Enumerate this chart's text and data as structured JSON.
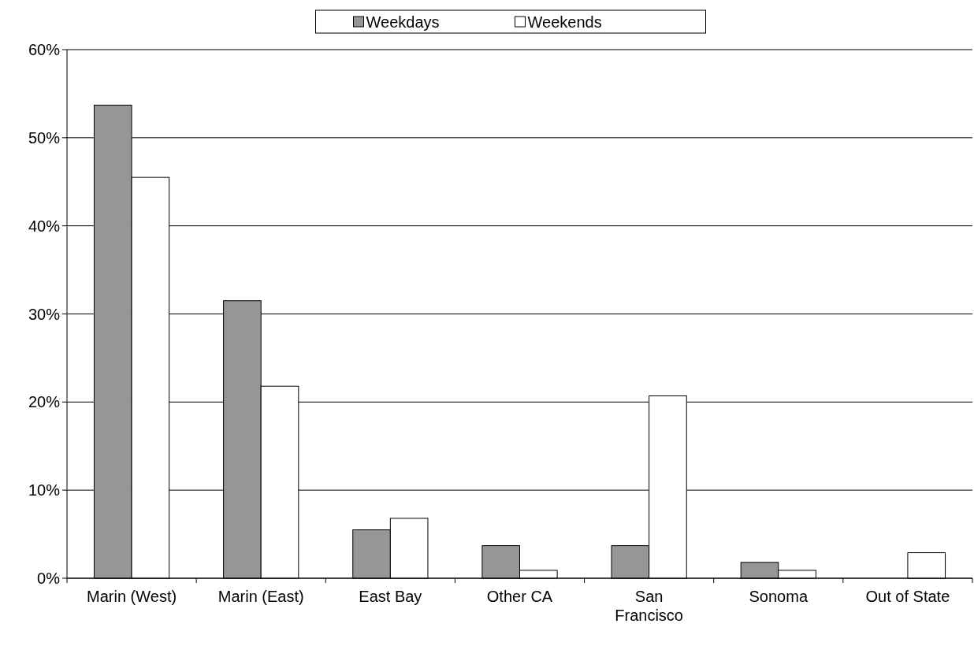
{
  "chart_data": {
    "type": "bar",
    "categories": [
      "Marin (West)",
      "Marin (East)",
      "East Bay",
      "Other CA",
      "San Francisco",
      "Sonoma",
      "Out of State"
    ],
    "series": [
      {
        "name": "Weekdays",
        "color": "#969696",
        "values": [
          53.7,
          31.5,
          5.5,
          3.7,
          3.7,
          1.8,
          0
        ]
      },
      {
        "name": "Weekends",
        "color": "#ffffff",
        "values": [
          45.5,
          21.8,
          6.8,
          0.9,
          20.7,
          0.9,
          2.9
        ]
      }
    ],
    "ylim": [
      0,
      60
    ],
    "yticks": [
      {
        "value": 0,
        "label": "0%"
      },
      {
        "value": 10,
        "label": "10%"
      },
      {
        "value": 20,
        "label": "20%"
      },
      {
        "value": 30,
        "label": "30%"
      },
      {
        "value": 40,
        "label": "40%"
      },
      {
        "value": 50,
        "label": "50%"
      },
      {
        "value": 60,
        "label": "60%"
      }
    ],
    "grid": "y",
    "legend": "top"
  }
}
